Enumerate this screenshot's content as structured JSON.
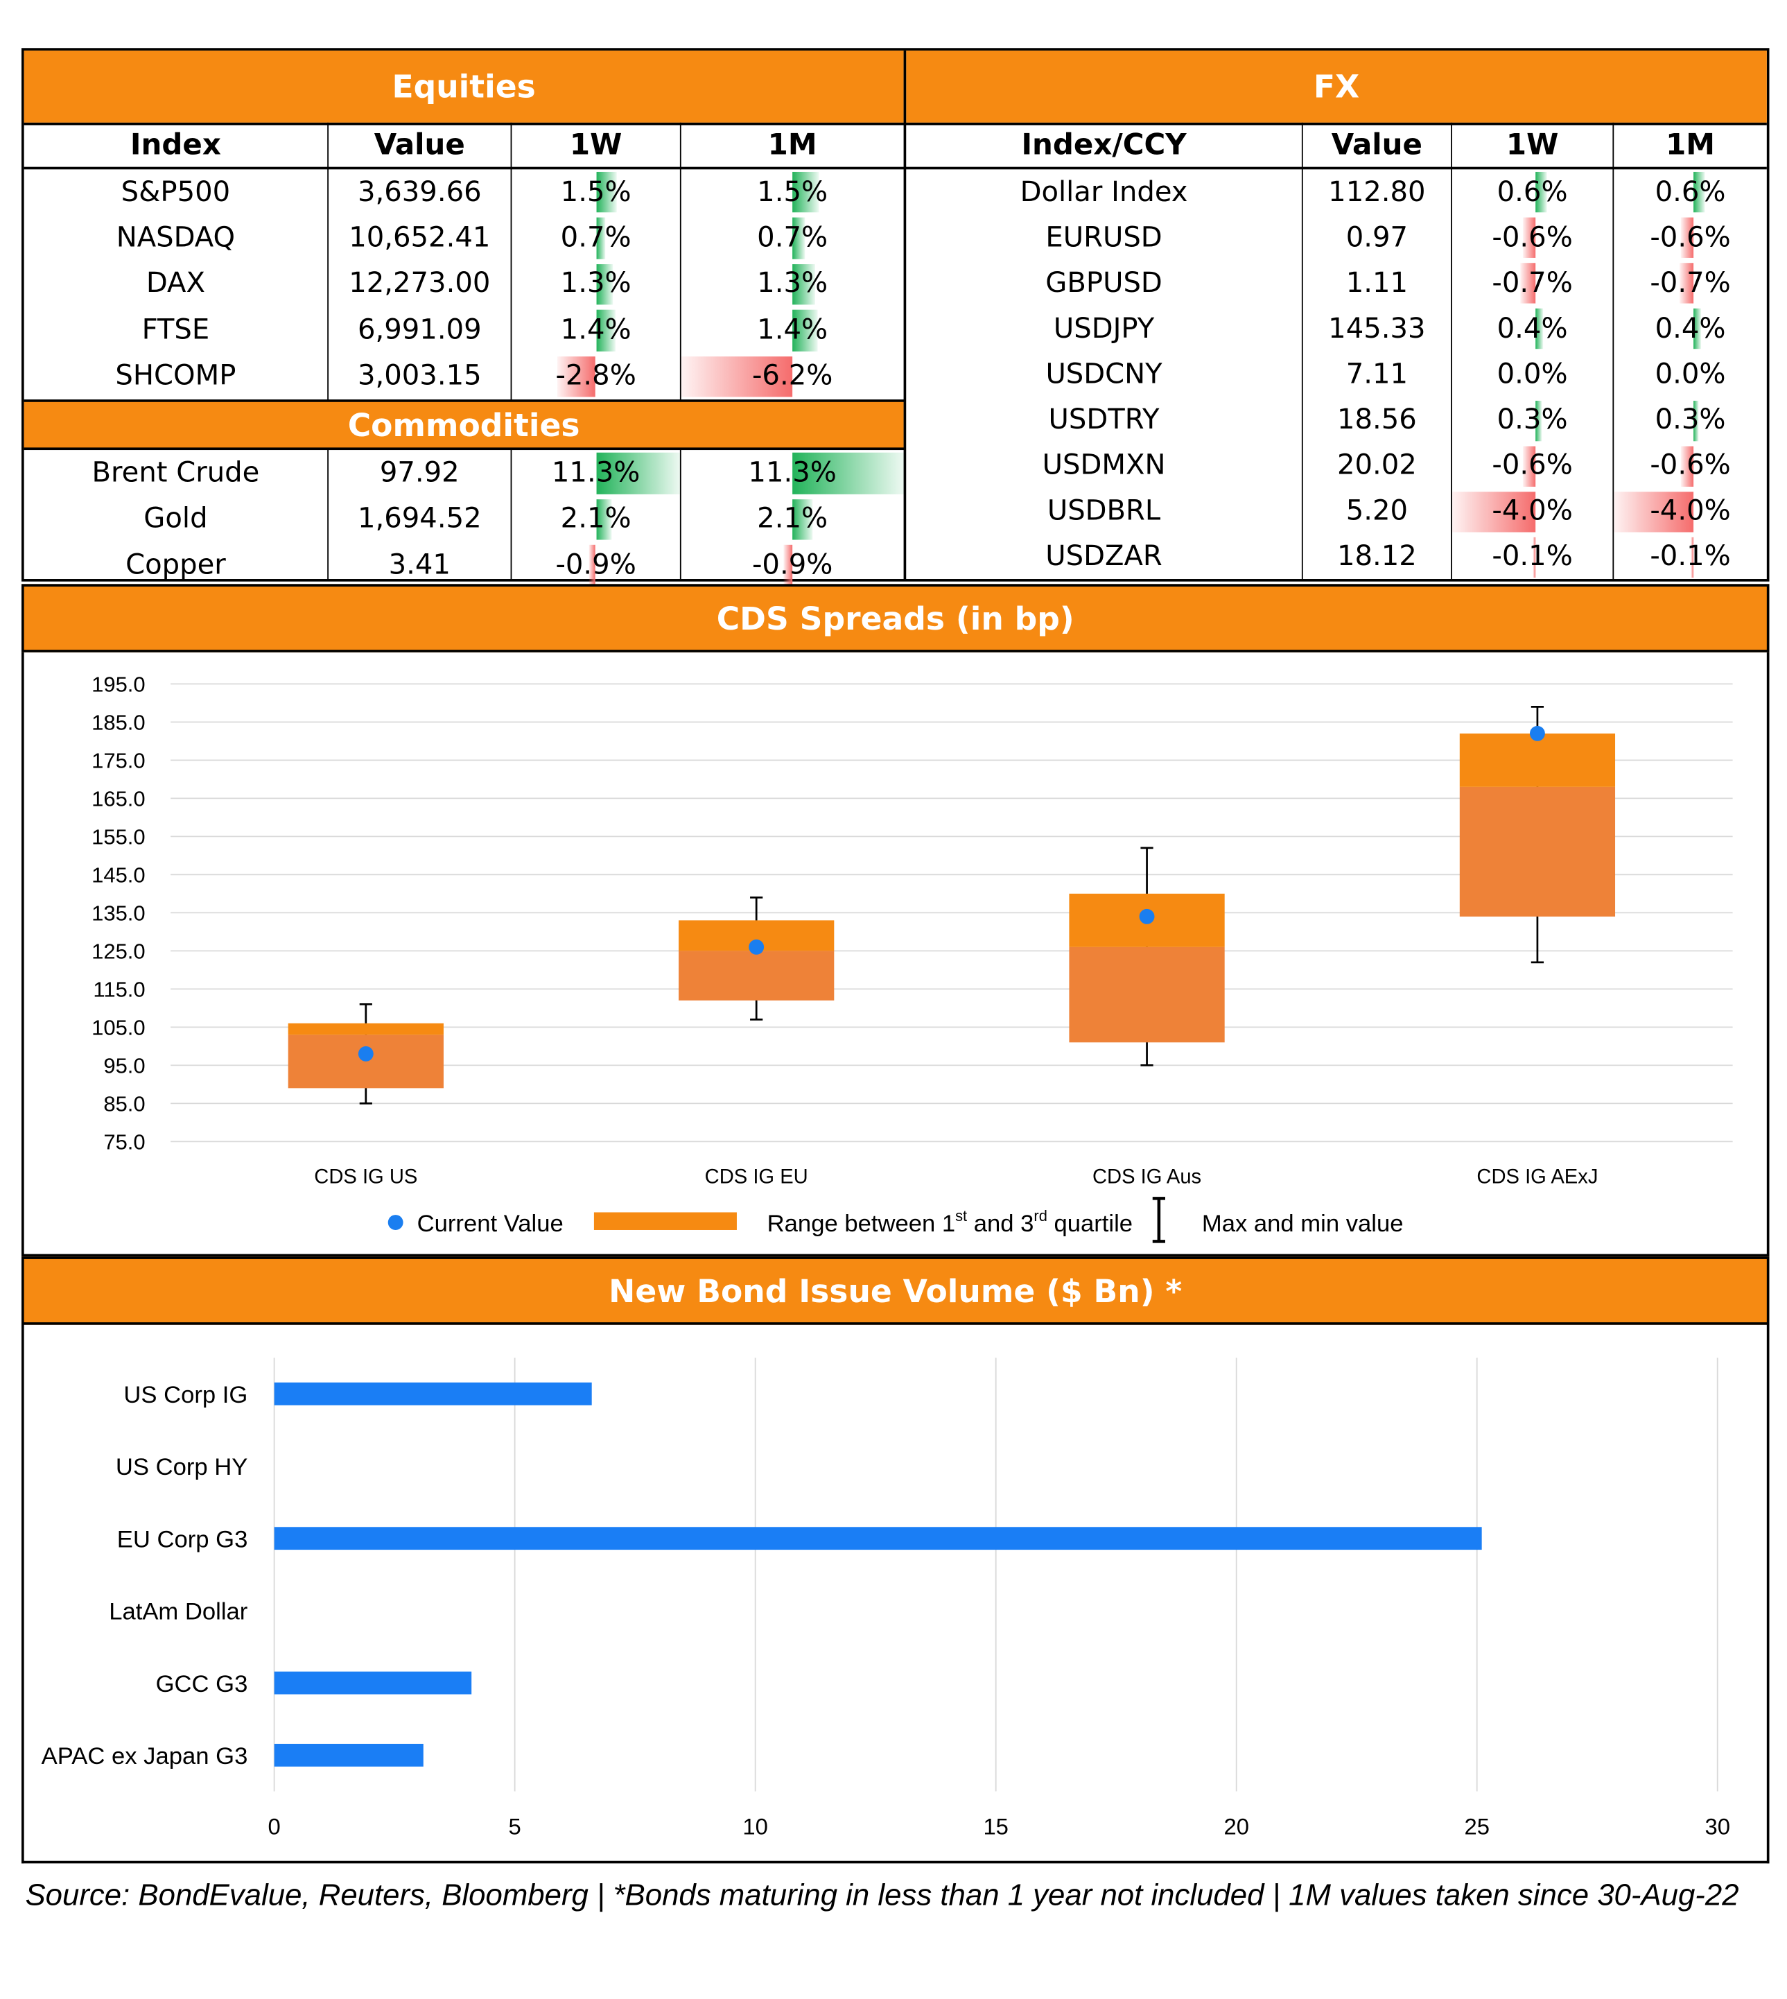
{
  "equities": {
    "title": "Equities",
    "columns": [
      "Index",
      "Value",
      "1W",
      "1M"
    ],
    "rows": [
      {
        "name": "S&P500",
        "value": "3,639.66",
        "w1": "1.5%",
        "m1": "1.5%",
        "w1n": 1.5,
        "m1n": 1.5
      },
      {
        "name": "NASDAQ",
        "value": "10,652.41",
        "w1": "0.7%",
        "m1": "0.7%",
        "w1n": 0.7,
        "m1n": 0.7
      },
      {
        "name": "DAX",
        "value": "12,273.00",
        "w1": "1.3%",
        "m1": "1.3%",
        "w1n": 1.3,
        "m1n": 1.3
      },
      {
        "name": "FTSE",
        "value": "6,991.09",
        "w1": "1.4%",
        "m1": "1.4%",
        "w1n": 1.4,
        "m1n": 1.4
      },
      {
        "name": "SHCOMP",
        "value": "3,003.15",
        "w1": "-2.8%",
        "m1": "-6.2%",
        "w1n": -2.8,
        "m1n": -6.2
      }
    ]
  },
  "commodities": {
    "title": "Commodities",
    "rows": [
      {
        "name": "Brent Crude",
        "value": "97.92",
        "w1": "11.3%",
        "m1": "11.3%",
        "w1n": 11.3,
        "m1n": 11.3
      },
      {
        "name": "Gold",
        "value": "1,694.52",
        "w1": "2.1%",
        "m1": "2.1%",
        "w1n": 2.1,
        "m1n": 2.1
      },
      {
        "name": "Copper",
        "value": "3.41",
        "w1": "-0.9%",
        "m1": "-0.9%",
        "w1n": -0.9,
        "m1n": -0.9
      }
    ]
  },
  "fx": {
    "title": "FX",
    "columns": [
      "Index/CCY",
      "Value",
      "1W",
      "1M"
    ],
    "rows": [
      {
        "name": "Dollar Index",
        "value": "112.80",
        "w1": "0.6%",
        "m1": "0.6%",
        "w1n": 0.6,
        "m1n": 0.6
      },
      {
        "name": "EURUSD",
        "value": "0.97",
        "w1": "-0.6%",
        "m1": "-0.6%",
        "w1n": -0.6,
        "m1n": -0.6
      },
      {
        "name": "GBPUSD",
        "value": "1.11",
        "w1": "-0.7%",
        "m1": "-0.7%",
        "w1n": -0.7,
        "m1n": -0.7
      },
      {
        "name": "USDJPY",
        "value": "145.33",
        "w1": "0.4%",
        "m1": "0.4%",
        "w1n": 0.4,
        "m1n": 0.4
      },
      {
        "name": "USDCNY",
        "value": "7.11",
        "w1": "0.0%",
        "m1": "0.0%",
        "w1n": 0.0,
        "m1n": 0.0
      },
      {
        "name": "USDTRY",
        "value": "18.56",
        "w1": "0.3%",
        "m1": "0.3%",
        "w1n": 0.3,
        "m1n": 0.3
      },
      {
        "name": "USDMXN",
        "value": "20.02",
        "w1": "-0.6%",
        "m1": "-0.6%",
        "w1n": -0.6,
        "m1n": -0.6
      },
      {
        "name": "USDBRL",
        "value": "5.20",
        "w1": "-4.0%",
        "m1": "-4.0%",
        "w1n": -4.0,
        "m1n": -4.0
      },
      {
        "name": "USDZAR",
        "value": "18.12",
        "w1": "-0.1%",
        "m1": "-0.1%",
        "w1n": -0.1,
        "m1n": -0.1
      }
    ]
  },
  "colors": {
    "header": "#f68a12",
    "positive_bar": "#22b35a",
    "negative_bar": "#f56c6c",
    "box_upper": "#f68a12",
    "box_lower": "#ee8238",
    "current_dot": "#1a7ef0",
    "bond_bar": "#1a7ef5",
    "grid": "#d9d9d9"
  },
  "chart_data": [
    {
      "type": "box",
      "title": "CDS Spreads (in bp)",
      "categories": [
        "CDS IG US",
        "CDS IG EU",
        "CDS IG Aus",
        "CDS IG AExJ"
      ],
      "current": [
        98,
        126,
        134,
        182
      ],
      "q1": [
        89,
        112,
        101,
        134
      ],
      "median": [
        103,
        125,
        126,
        168
      ],
      "q3": [
        106,
        133,
        140,
        182
      ],
      "min": [
        85,
        107,
        95,
        122
      ],
      "max": [
        111,
        139,
        152,
        189
      ],
      "ylim": [
        75,
        195
      ],
      "yticks": [
        "195.0",
        "185.0",
        "175.0",
        "165.0",
        "155.0",
        "145.0",
        "135.0",
        "125.0",
        "115.0",
        "105.0",
        "95.0",
        "85.0",
        "75.0"
      ],
      "legend": {
        "current": "Current Value",
        "range": "Range between 1",
        "range_sup1": "st",
        "range_mid": " and 3",
        "range_sup2": "rd",
        "range_end": " quartile",
        "maxmin": "Max and min value"
      },
      "grid": true
    },
    {
      "type": "bar",
      "orientation": "horizontal",
      "title": "New Bond Issue Volume ($ Bn) *",
      "categories": [
        "US Corp IG",
        "US Corp HY",
        "EU Corp G3",
        "LatAm Dollar",
        "GCC G3",
        "APAC ex Japan G3"
      ],
      "values": [
        6.6,
        0,
        25.1,
        0,
        4.1,
        3.1
      ],
      "xlim": [
        0,
        30
      ],
      "xticks": [
        "0",
        "5",
        "10",
        "15",
        "20",
        "25",
        "30"
      ],
      "grid": true
    }
  ],
  "source": "Source: BondEvalue, Reuters, Bloomberg | *Bonds maturing in less than 1 year not included | 1M values taken since 30-Aug-22"
}
